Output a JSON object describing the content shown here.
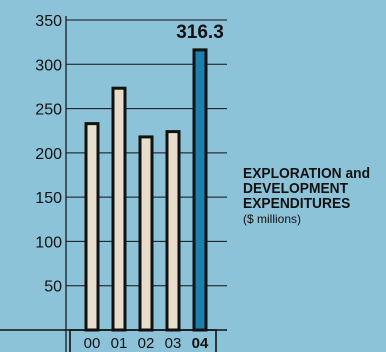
{
  "chart_data": {
    "type": "bar",
    "categories": [
      "00",
      "01",
      "02",
      "03",
      "04"
    ],
    "values": [
      233,
      273,
      218,
      224,
      316.3
    ],
    "highlight_index": 4,
    "data_labels": [
      {
        "index": 4,
        "text": "316.3"
      }
    ],
    "y_ticks": [
      50,
      100,
      150,
      200,
      250,
      300,
      350
    ],
    "ylim": [
      0,
      350
    ],
    "grid": true,
    "colors": {
      "background": "#8dc3d9",
      "bar": "#e8dccb",
      "bar_highlight": "#1d7fae",
      "outline": "#111111"
    }
  },
  "side_label": {
    "title_lines": [
      "EXPLORATION and",
      "DEVELOPMENT",
      "EXPENDITURES"
    ],
    "unit": "($ millions)"
  }
}
